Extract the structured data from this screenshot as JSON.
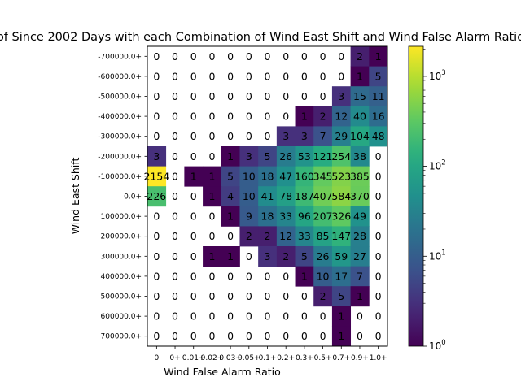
{
  "chart_data": {
    "type": "heatmap",
    "title": "of Since 2002 Days with each Combination of Wind East Shift and Wind False Alarm Ratio",
    "xlabel": "Wind False Alarm Ratio",
    "ylabel": "Wind East Shift",
    "x_categories": [
      "0",
      "0+",
      "0.01+",
      "0.02+",
      "0.03+",
      "0.05+",
      "0.1+",
      "0.2+",
      "0.3+",
      "0.5+",
      "0.7+",
      "0.9+",
      "1.0+"
    ],
    "y_categories": [
      "-700000.0+",
      "-600000.0+",
      "-500000.0+",
      "-400000.0+",
      "-300000.0+",
      "-200000.0+",
      "-100000.0+",
      "0.0+",
      "100000.0+",
      "200000.0+",
      "300000.0+",
      "400000.0+",
      "500000.0+",
      "600000.0+",
      "700000.0+"
    ],
    "values": [
      [
        0,
        0,
        0,
        0,
        0,
        0,
        0,
        0,
        0,
        0,
        0,
        2,
        1
      ],
      [
        0,
        0,
        0,
        0,
        0,
        0,
        0,
        0,
        0,
        0,
        0,
        1,
        5
      ],
      [
        0,
        0,
        0,
        0,
        0,
        0,
        0,
        0,
        0,
        0,
        3,
        15,
        11
      ],
      [
        0,
        0,
        0,
        0,
        0,
        0,
        0,
        0,
        1,
        2,
        12,
        40,
        16
      ],
      [
        0,
        0,
        0,
        0,
        0,
        0,
        0,
        3,
        3,
        7,
        29,
        104,
        48
      ],
      [
        3,
        0,
        0,
        0,
        1,
        3,
        5,
        26,
        53,
        121,
        254,
        38,
        0
      ],
      [
        2154,
        0,
        1,
        1,
        5,
        10,
        18,
        47,
        160,
        345,
        523,
        385,
        0
      ],
      [
        226,
        0,
        0,
        1,
        4,
        10,
        41,
        78,
        187,
        407,
        584,
        370,
        0
      ],
      [
        0,
        0,
        0,
        0,
        1,
        9,
        18,
        33,
        96,
        207,
        326,
        49,
        0
      ],
      [
        0,
        0,
        0,
        0,
        0,
        2,
        2,
        12,
        33,
        85,
        147,
        28,
        0
      ],
      [
        0,
        0,
        0,
        1,
        1,
        0,
        3,
        2,
        5,
        26,
        59,
        27,
        0
      ],
      [
        0,
        0,
        0,
        0,
        0,
        0,
        0,
        0,
        1,
        10,
        17,
        7,
        0
      ],
      [
        0,
        0,
        0,
        0,
        0,
        0,
        0,
        0,
        0,
        2,
        5,
        1,
        0
      ],
      [
        0,
        0,
        0,
        0,
        0,
        0,
        0,
        0,
        0,
        0,
        1,
        0,
        0
      ],
      [
        0,
        0,
        0,
        0,
        0,
        0,
        0,
        0,
        0,
        0,
        1,
        0,
        0
      ]
    ],
    "colorbar": {
      "scale": "log",
      "range": [
        1,
        2154
      ],
      "tick_values": [
        1,
        10,
        100,
        1000
      ],
      "tick_labels": [
        "10^0",
        "10^1",
        "10^2",
        "10^3"
      ],
      "colormap": "viridis"
    },
    "grid": false
  }
}
